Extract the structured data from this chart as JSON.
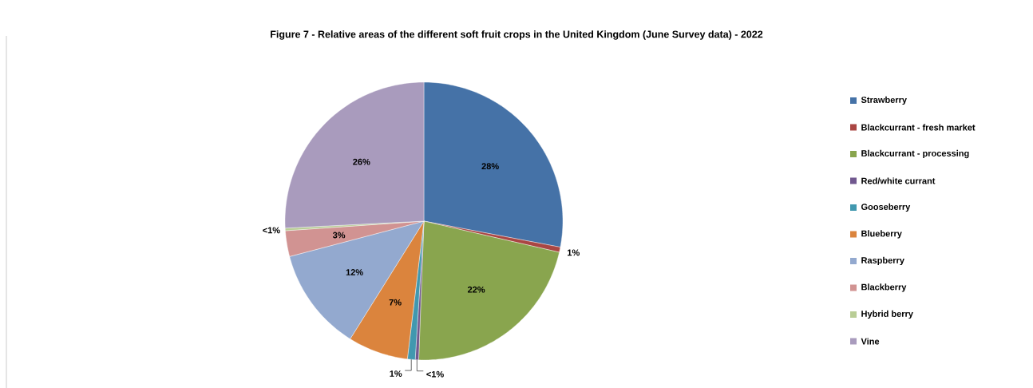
{
  "chart_data": {
    "type": "pie",
    "title": "Figure 7 - Relative areas of the different soft fruit crops in the United Kingdom (June Survey data) - 2022",
    "categories": [
      "Strawberry",
      "Blackcurrant - fresh market",
      "Blackcurrant - processing",
      "Red/white currant",
      "Gooseberry",
      "Blueberry",
      "Raspberry",
      "Blackberry",
      "Hybrid berry",
      "Vine"
    ],
    "values": [
      28,
      0.6,
      22,
      0.4,
      0.9,
      7,
      12,
      3,
      0.3,
      25.8
    ],
    "colors": [
      "#4572a7",
      "#aa4643",
      "#89a54e",
      "#71588f",
      "#4198af",
      "#db843d",
      "#93a9cf",
      "#d19392",
      "#b9cd96",
      "#a99bbd"
    ],
    "value_labels": [
      "28%",
      "1%",
      "22%",
      "<1%",
      "1%",
      "7%",
      "12%",
      "3%",
      "<1%",
      "26%"
    ],
    "legend": "right"
  }
}
